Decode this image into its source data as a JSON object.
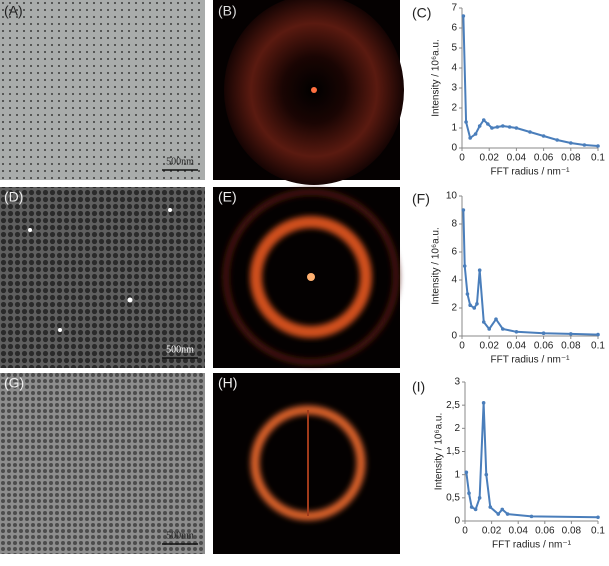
{
  "panel_labels": [
    "(A)",
    "(B)",
    "(C)",
    "(D)",
    "(E)",
    "(F)",
    "(G)",
    "(H)",
    "(I)"
  ],
  "scale_bars": [
    "500nm",
    "500nm",
    "500nm"
  ],
  "chart_data": [
    {
      "type": "line",
      "ylabel": "Intensity / 10⁶a.u.",
      "xlabel": "FFT radius / nm⁻¹",
      "color": "#4a7ebb",
      "x": [
        0.001,
        0.003,
        0.006,
        0.01,
        0.013,
        0.016,
        0.019,
        0.022,
        0.026,
        0.03,
        0.035,
        0.04,
        0.05,
        0.06,
        0.07,
        0.08,
        0.09,
        0.1
      ],
      "values": [
        6.6,
        1.3,
        0.5,
        0.7,
        1.1,
        1.4,
        1.2,
        1.0,
        1.05,
        1.1,
        1.05,
        1.0,
        0.8,
        0.6,
        0.4,
        0.25,
        0.15,
        0.1
      ],
      "xlim": [
        0,
        0.1
      ],
      "xticks": [
        0,
        0.02,
        0.04,
        0.06,
        0.08,
        0.1
      ],
      "ylim": [
        0,
        7
      ],
      "yticks": [
        0,
        1,
        2,
        3,
        4,
        5,
        6,
        7
      ]
    },
    {
      "type": "line",
      "ylabel": "Intensity / 10⁶a.u.",
      "xlabel": "FFT radius / nm⁻¹",
      "color": "#4a7ebb",
      "x": [
        0.001,
        0.002,
        0.004,
        0.006,
        0.009,
        0.011,
        0.013,
        0.016,
        0.02,
        0.025,
        0.03,
        0.04,
        0.06,
        0.08,
        0.1
      ],
      "values": [
        9,
        5,
        3,
        2.2,
        2,
        2.3,
        4.7,
        1,
        0.5,
        1.2,
        0.5,
        0.3,
        0.2,
        0.15,
        0.1
      ],
      "xlim": [
        0,
        0.1
      ],
      "xticks": [
        0,
        0.02,
        0.04,
        0.06,
        0.08,
        0.1
      ],
      "ylim": [
        0,
        10
      ],
      "yticks": [
        0,
        2,
        4,
        6,
        8,
        10
      ]
    },
    {
      "type": "line",
      "ylabel": "Intensity / 10⁶a.u.",
      "xlabel": "FFT radius / nm⁻¹",
      "color": "#4a7ebb",
      "x": [
        0.001,
        0.003,
        0.005,
        0.008,
        0.011,
        0.014,
        0.016,
        0.019,
        0.025,
        0.028,
        0.032,
        0.05,
        0.1
      ],
      "values": [
        1.05,
        0.6,
        0.3,
        0.25,
        0.5,
        2.55,
        1.0,
        0.3,
        0.15,
        0.25,
        0.15,
        0.1,
        0.08
      ],
      "xlim": [
        0,
        0.1
      ],
      "xticks": [
        0,
        0.02,
        0.04,
        0.06,
        0.08,
        0.1
      ],
      "ylim": [
        0,
        3
      ],
      "yticks": [
        0,
        {
          "value": 0.5,
          "label": "0,5"
        },
        1,
        {
          "value": 1.5,
          "label": "1,5"
        },
        2,
        {
          "value": 2.5,
          "label": "2,5"
        },
        3
      ]
    }
  ]
}
